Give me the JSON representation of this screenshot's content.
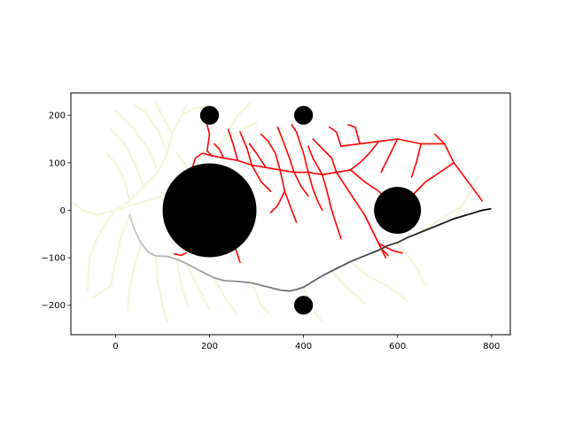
{
  "chart_data": {
    "type": "scatter",
    "title": "",
    "xlabel": "",
    "ylabel": "",
    "xlim": [
      -95,
      840
    ],
    "ylim": [
      -262,
      247
    ],
    "grid": false,
    "xticks": [
      0,
      200,
      400,
      600,
      800
    ],
    "yticks": [
      -200,
      -100,
      0,
      100,
      200
    ],
    "xtick_labels": [
      "0",
      "200",
      "400",
      "600",
      "800"
    ],
    "ytick_labels": [
      "−200",
      "−100",
      "0",
      "100",
      "200"
    ],
    "obstacles": [
      {
        "x": 200,
        "y": 0,
        "r": 100
      },
      {
        "x": 600,
        "y": 0,
        "r": 50
      },
      {
        "x": 200,
        "y": 200,
        "r": 20
      },
      {
        "x": 400,
        "y": 200,
        "r": 20
      },
      {
        "x": 400,
        "y": -200,
        "r": 20
      }
    ],
    "colors": {
      "obstacle": "#000000",
      "tree_left": "#f5f5dc",
      "tree_right": "#ff0000",
      "path_start": "#c8c8c8",
      "path_end": "#000000"
    },
    "path": [
      [
        30,
        -10
      ],
      [
        40,
        -40
      ],
      [
        55,
        -70
      ],
      [
        70,
        -88
      ],
      [
        85,
        -96
      ],
      [
        110,
        -97
      ],
      [
        130,
        -103
      ],
      [
        150,
        -112
      ],
      [
        170,
        -122
      ],
      [
        195,
        -135
      ],
      [
        210,
        -142
      ],
      [
        230,
        -148
      ],
      [
        260,
        -150
      ],
      [
        290,
        -153
      ],
      [
        310,
        -158
      ],
      [
        330,
        -163
      ],
      [
        350,
        -168
      ],
      [
        370,
        -170
      ],
      [
        385,
        -167
      ],
      [
        400,
        -162
      ],
      [
        420,
        -150
      ],
      [
        440,
        -138
      ],
      [
        460,
        -128
      ],
      [
        480,
        -118
      ],
      [
        500,
        -108
      ],
      [
        520,
        -100
      ],
      [
        540,
        -92
      ],
      [
        560,
        -84
      ],
      [
        580,
        -74
      ],
      [
        600,
        -68
      ],
      [
        620,
        -58
      ],
      [
        640,
        -50
      ],
      [
        660,
        -42
      ],
      [
        680,
        -34
      ],
      [
        700,
        -26
      ],
      [
        720,
        -18
      ],
      [
        740,
        -12
      ],
      [
        760,
        -6
      ],
      [
        780,
        0
      ],
      [
        798,
        3
      ]
    ],
    "tree_left_branches": [
      [
        [
          0,
          0
        ],
        [
          30,
          20
        ],
        [
          60,
          50
        ],
        [
          90,
          80
        ],
        [
          110,
          120
        ],
        [
          120,
          160
        ],
        [
          140,
          200
        ],
        [
          150,
          220
        ]
      ],
      [
        [
          30,
          20
        ],
        [
          20,
          60
        ],
        [
          5,
          95
        ],
        [
          -20,
          120
        ]
      ],
      [
        [
          60,
          50
        ],
        [
          40,
          100
        ],
        [
          20,
          140
        ],
        [
          -10,
          170
        ]
      ],
      [
        [
          90,
          80
        ],
        [
          70,
          130
        ],
        [
          40,
          170
        ],
        [
          0,
          210
        ]
      ],
      [
        [
          110,
          120
        ],
        [
          90,
          170
        ],
        [
          60,
          210
        ],
        [
          40,
          220
        ]
      ],
      [
        [
          120,
          160
        ],
        [
          100,
          200
        ],
        [
          85,
          225
        ]
      ],
      [
        [
          140,
          200
        ],
        [
          170,
          215
        ],
        [
          200,
          220
        ]
      ],
      [
        [
          0,
          0
        ],
        [
          50,
          15
        ],
        [
          100,
          30
        ],
        [
          140,
          40
        ],
        [
          170,
          55
        ],
        [
          200,
          110
        ],
        [
          230,
          150
        ],
        [
          270,
          170
        ],
        [
          300,
          185
        ]
      ],
      [
        [
          230,
          150
        ],
        [
          260,
          200
        ],
        [
          285,
          225
        ]
      ],
      [
        [
          170,
          55
        ],
        [
          150,
          95
        ],
        [
          130,
          120
        ]
      ],
      [
        [
          0,
          0
        ],
        [
          -20,
          -25
        ],
        [
          -40,
          -60
        ],
        [
          -55,
          -100
        ],
        [
          -60,
          -170
        ]
      ],
      [
        [
          30,
          -10
        ],
        [
          10,
          -60
        ],
        [
          0,
          -110
        ],
        [
          -10,
          -160
        ],
        [
          -50,
          -185
        ]
      ],
      [
        [
          55,
          -70
        ],
        [
          40,
          -120
        ],
        [
          30,
          -165
        ],
        [
          25,
          -215
        ]
      ],
      [
        [
          85,
          -96
        ],
        [
          90,
          -150
        ],
        [
          100,
          -200
        ],
        [
          110,
          -235
        ]
      ],
      [
        [
          130,
          -103
        ],
        [
          140,
          -160
        ],
        [
          155,
          -205
        ]
      ],
      [
        [
          150,
          -112
        ],
        [
          180,
          -170
        ],
        [
          200,
          -210
        ]
      ],
      [
        [
          210,
          -142
        ],
        [
          240,
          -195
        ],
        [
          260,
          -220
        ]
      ],
      [
        [
          290,
          -153
        ],
        [
          310,
          -200
        ],
        [
          330,
          -220
        ]
      ],
      [
        [
          0,
          0
        ],
        [
          -40,
          -10
        ],
        [
          -70,
          0
        ],
        [
          -90,
          15
        ]
      ],
      [
        [
          400,
          -162
        ],
        [
          420,
          -210
        ],
        [
          440,
          -235
        ]
      ],
      [
        [
          460,
          -128
        ],
        [
          500,
          -170
        ],
        [
          530,
          -195
        ]
      ],
      [
        [
          500,
          -108
        ],
        [
          540,
          -140
        ],
        [
          580,
          -160
        ],
        [
          620,
          -190
        ]
      ],
      [
        [
          600,
          -68
        ],
        [
          640,
          -120
        ],
        [
          660,
          -160
        ]
      ],
      [
        [
          640,
          -50
        ],
        [
          690,
          -20
        ],
        [
          730,
          5
        ]
      ],
      [
        [
          720,
          -18
        ],
        [
          750,
          30
        ],
        [
          770,
          70
        ]
      ]
    ],
    "tree_right_branches": [
      [
        [
          780,
          20
        ],
        [
          750,
          60
        ],
        [
          720,
          100
        ],
        [
          700,
          140
        ],
        [
          680,
          160
        ]
      ],
      [
        [
          700,
          140
        ],
        [
          650,
          140
        ],
        [
          600,
          150
        ],
        [
          560,
          145
        ],
        [
          520,
          140
        ],
        [
          480,
          135
        ]
      ],
      [
        [
          560,
          145
        ],
        [
          540,
          120
        ],
        [
          520,
          100
        ],
        [
          500,
          85
        ],
        [
          470,
          80
        ],
        [
          440,
          75
        ],
        [
          410,
          80
        ],
        [
          380,
          80
        ],
        [
          350,
          85
        ],
        [
          320,
          90
        ],
        [
          290,
          95
        ],
        [
          260,
          105
        ],
        [
          230,
          110
        ],
        [
          205,
          115
        ],
        [
          195,
          125
        ]
      ],
      [
        [
          720,
          100
        ],
        [
          690,
          80
        ],
        [
          660,
          60
        ],
        [
          640,
          40
        ],
        [
          620,
          20
        ]
      ],
      [
        [
          650,
          140
        ],
        [
          640,
          100
        ],
        [
          630,
          70
        ]
      ],
      [
        [
          600,
          150
        ],
        [
          580,
          110
        ],
        [
          565,
          80
        ]
      ],
      [
        [
          520,
          140
        ],
        [
          510,
          175
        ],
        [
          495,
          180
        ]
      ],
      [
        [
          480,
          135
        ],
        [
          470,
          165
        ],
        [
          455,
          175
        ]
      ],
      [
        [
          470,
          80
        ],
        [
          460,
          110
        ],
        [
          440,
          130
        ],
        [
          420,
          150
        ]
      ],
      [
        [
          440,
          75
        ],
        [
          420,
          110
        ],
        [
          410,
          135
        ]
      ],
      [
        [
          410,
          80
        ],
        [
          400,
          120
        ],
        [
          385,
          165
        ],
        [
          375,
          180
        ]
      ],
      [
        [
          380,
          80
        ],
        [
          370,
          110
        ],
        [
          355,
          150
        ],
        [
          345,
          175
        ]
      ],
      [
        [
          350,
          85
        ],
        [
          340,
          120
        ],
        [
          325,
          145
        ],
        [
          310,
          160
        ]
      ],
      [
        [
          320,
          90
        ],
        [
          300,
          120
        ],
        [
          285,
          140
        ]
      ],
      [
        [
          290,
          95
        ],
        [
          280,
          130
        ],
        [
          265,
          165
        ]
      ],
      [
        [
          260,
          105
        ],
        [
          250,
          140
        ],
        [
          240,
          170
        ]
      ],
      [
        [
          230,
          110
        ],
        [
          220,
          130
        ],
        [
          210,
          140
        ]
      ],
      [
        [
          440,
          75
        ],
        [
          450,
          40
        ],
        [
          460,
          0
        ],
        [
          470,
          -30
        ],
        [
          480,
          -60
        ]
      ],
      [
        [
          470,
          80
        ],
        [
          490,
          50
        ],
        [
          510,
          20
        ],
        [
          530,
          -10
        ],
        [
          545,
          -40
        ],
        [
          560,
          -70
        ],
        [
          575,
          -100
        ]
      ],
      [
        [
          500,
          85
        ],
        [
          530,
          60
        ],
        [
          560,
          40
        ],
        [
          580,
          20
        ]
      ],
      [
        [
          530,
          -10
        ],
        [
          550,
          -50
        ],
        [
          565,
          -80
        ],
        [
          580,
          -95
        ]
      ],
      [
        [
          560,
          -70
        ],
        [
          590,
          -85
        ],
        [
          610,
          -90
        ]
      ],
      [
        [
          410,
          80
        ],
        [
          420,
          45
        ],
        [
          430,
          20
        ],
        [
          440,
          0
        ]
      ],
      [
        [
          380,
          80
        ],
        [
          395,
          50
        ],
        [
          410,
          30
        ]
      ],
      [
        [
          350,
          85
        ],
        [
          360,
          40
        ],
        [
          375,
          0
        ],
        [
          385,
          -25
        ]
      ],
      [
        [
          360,
          40
        ],
        [
          345,
          10
        ],
        [
          330,
          -5
        ]
      ],
      [
        [
          290,
          95
        ],
        [
          310,
          60
        ],
        [
          330,
          40
        ]
      ],
      [
        [
          205,
          115
        ],
        [
          185,
          120
        ],
        [
          170,
          110
        ]
      ],
      [
        [
          195,
          125
        ],
        [
          200,
          160
        ],
        [
          195,
          180
        ]
      ],
      [
        [
          170,
          110
        ],
        [
          160,
          80
        ],
        [
          165,
          40
        ]
      ],
      [
        [
          165,
          40
        ],
        [
          150,
          20
        ],
        [
          145,
          5
        ]
      ],
      [
        [
          245,
          -40
        ],
        [
          255,
          -80
        ],
        [
          265,
          -110
        ]
      ],
      [
        [
          150,
          -90
        ],
        [
          140,
          -95
        ],
        [
          125,
          -92
        ]
      ]
    ]
  }
}
